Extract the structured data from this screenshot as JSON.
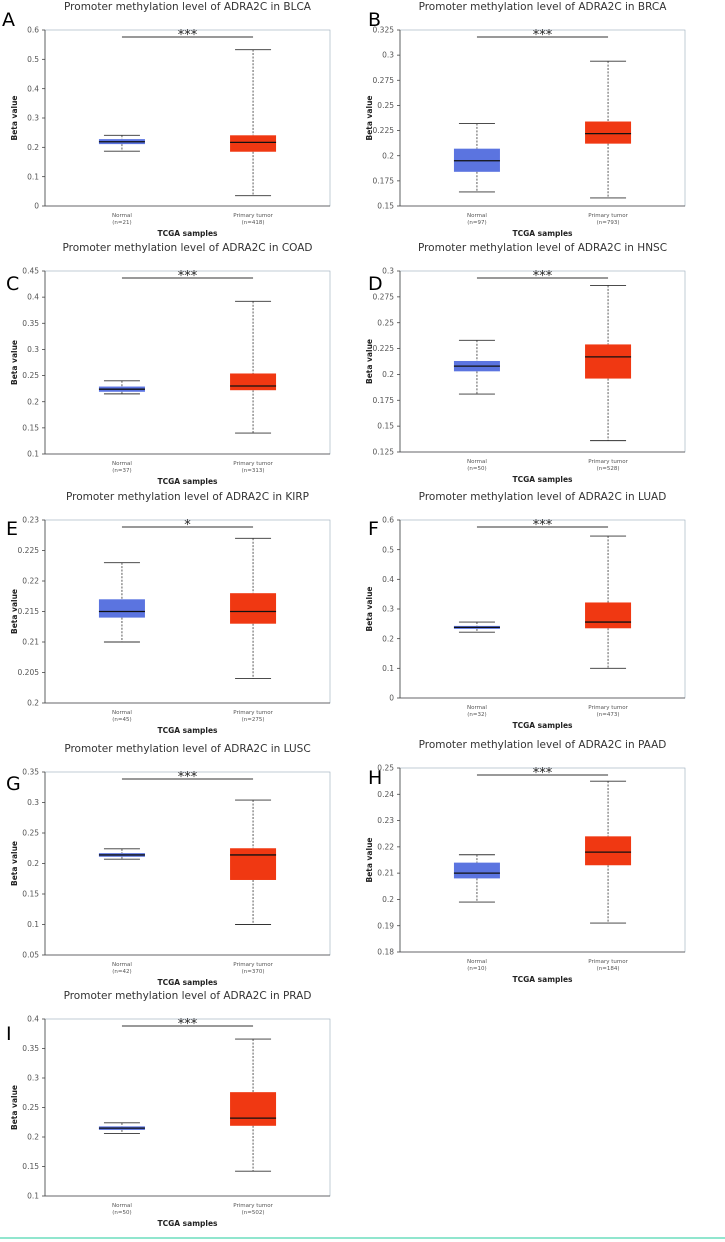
{
  "figure_rule_color": "#4fd6b0",
  "colors": {
    "normal": "#5b74e0",
    "tumor": "#f03812"
  },
  "chart_data": [
    {
      "type": "box",
      "letter": "A",
      "title": "Promoter methylation level of ADRA2C in BLCA",
      "ylabel": "Beta value",
      "xlabel": "TCGA samples",
      "ylim": [
        0,
        0.6
      ],
      "yticks": [
        "0",
        "0.1",
        "0.2",
        "0.3",
        "0.4",
        "0.5",
        "0.6"
      ],
      "significance": "***",
      "groups": [
        {
          "name": "Normal",
          "n": "(n=21)",
          "min": 0.187,
          "q1": 0.211,
          "median": 0.219,
          "q3": 0.228,
          "max": 0.241
        },
        {
          "name": "Primary tumor",
          "n": "(n=418)",
          "min": 0.035,
          "q1": 0.185,
          "median": 0.217,
          "q3": 0.241,
          "max": 0.533
        }
      ]
    },
    {
      "type": "box",
      "letter": "B",
      "title": "Promoter methylation level of ADRA2C in BRCA",
      "ylabel": "Beta value",
      "xlabel": "TCGA samples",
      "ylim": [
        0.15,
        0.325
      ],
      "yticks": [
        "0.15",
        "0.175",
        "0.2",
        "0.225",
        "0.25",
        "0.275",
        "0.3",
        "0.325"
      ],
      "significance": "***",
      "groups": [
        {
          "name": "Normal",
          "n": "(n=97)",
          "min": 0.164,
          "q1": 0.184,
          "median": 0.195,
          "q3": 0.207,
          "max": 0.232
        },
        {
          "name": "Primary tumor",
          "n": "(n=793)",
          "min": 0.158,
          "q1": 0.212,
          "median": 0.222,
          "q3": 0.234,
          "max": 0.294
        }
      ]
    },
    {
      "type": "box",
      "letter": "C",
      "title": "Promoter methylation level of ADRA2C in COAD",
      "ylabel": "Beta value",
      "xlabel": "TCGA samples",
      "ylim": [
        0.1,
        0.45
      ],
      "yticks": [
        "0.1",
        "0.15",
        "0.2",
        "0.25",
        "0.3",
        "0.35",
        "0.4",
        "0.45"
      ],
      "significance": "***",
      "groups": [
        {
          "name": "Normal",
          "n": "(n=37)",
          "min": 0.215,
          "q1": 0.219,
          "median": 0.224,
          "q3": 0.229,
          "max": 0.24
        },
        {
          "name": "Primary tumor",
          "n": "(n=313)",
          "min": 0.14,
          "q1": 0.222,
          "median": 0.23,
          "q3": 0.254,
          "max": 0.392
        }
      ]
    },
    {
      "type": "box",
      "letter": "D",
      "title": "Promoter methylation level of ADRA2C in HNSC",
      "ylabel": "Beta value",
      "xlabel": "TCGA samples",
      "ylim": [
        0.125,
        0.3
      ],
      "yticks": [
        "0.125",
        "0.15",
        "0.175",
        "0.2",
        "0.225",
        "0.25",
        "0.275",
        "0.3"
      ],
      "significance": "***",
      "groups": [
        {
          "name": "Normal",
          "n": "(n=50)",
          "min": 0.181,
          "q1": 0.203,
          "median": 0.208,
          "q3": 0.213,
          "max": 0.233
        },
        {
          "name": "Primary tumor",
          "n": "(n=528)",
          "min": 0.136,
          "q1": 0.196,
          "median": 0.217,
          "q3": 0.229,
          "max": 0.286
        }
      ]
    },
    {
      "type": "box",
      "letter": "E",
      "title": "Promoter methylation level of ADRA2C in KIRP",
      "ylabel": "Beta value",
      "xlabel": "TCGA samples",
      "ylim": [
        0.2,
        0.23
      ],
      "yticks": [
        "0.2",
        "0.205",
        "0.21",
        "0.215",
        "0.22",
        "0.225",
        "0.23"
      ],
      "significance": "*",
      "groups": [
        {
          "name": "Normal",
          "n": "(n=45)",
          "min": 0.21,
          "q1": 0.214,
          "median": 0.215,
          "q3": 0.217,
          "max": 0.223
        },
        {
          "name": "Primary tumor",
          "n": "(n=275)",
          "min": 0.204,
          "q1": 0.213,
          "median": 0.215,
          "q3": 0.218,
          "max": 0.227
        }
      ]
    },
    {
      "type": "box",
      "letter": "F",
      "title": "Promoter methylation level of ADRA2C in LUAD",
      "ylabel": "Beta value",
      "xlabel": "TCGA samples",
      "ylim": [
        0,
        0.6
      ],
      "yticks": [
        "0",
        "0.1",
        "0.2",
        "0.3",
        "0.4",
        "0.5",
        "0.6"
      ],
      "significance": "***",
      "groups": [
        {
          "name": "Normal",
          "n": "(n=32)",
          "min": 0.222,
          "q1": 0.233,
          "median": 0.238,
          "q3": 0.243,
          "max": 0.256
        },
        {
          "name": "Primary tumor",
          "n": "(n=473)",
          "min": 0.1,
          "q1": 0.235,
          "median": 0.256,
          "q3": 0.322,
          "max": 0.546
        }
      ]
    },
    {
      "type": "box",
      "letter": "G",
      "title": "Promoter methylation level of ADRA2C in LUSC",
      "ylabel": "Beta value",
      "xlabel": "TCGA samples",
      "ylim": [
        0.05,
        0.35
      ],
      "yticks": [
        "0.05",
        "0.1",
        "0.15",
        "0.2",
        "0.25",
        "0.3",
        "0.35"
      ],
      "significance": "***",
      "groups": [
        {
          "name": "Normal",
          "n": "(n=42)",
          "min": 0.207,
          "q1": 0.211,
          "median": 0.214,
          "q3": 0.217,
          "max": 0.224
        },
        {
          "name": "Primary tumor",
          "n": "(n=370)",
          "min": 0.1,
          "q1": 0.173,
          "median": 0.214,
          "q3": 0.225,
          "max": 0.304
        }
      ]
    },
    {
      "type": "box",
      "letter": "H",
      "title": "Promoter methylation level of ADRA2C in PAAD",
      "ylabel": "Beta value",
      "xlabel": "TCGA samples",
      "ylim": [
        0.18,
        0.25
      ],
      "yticks": [
        "0.18",
        "0.19",
        "0.2",
        "0.21",
        "0.22",
        "0.23",
        "0.24",
        "0.25"
      ],
      "significance": "***",
      "groups": [
        {
          "name": "Normal",
          "n": "(n=10)",
          "min": 0.199,
          "q1": 0.208,
          "median": 0.21,
          "q3": 0.214,
          "max": 0.217
        },
        {
          "name": "Primary tumor",
          "n": "(n=184)",
          "min": 0.191,
          "q1": 0.213,
          "median": 0.218,
          "q3": 0.224,
          "max": 0.245
        }
      ]
    },
    {
      "type": "box",
      "letter": "I",
      "title": "Promoter methylation level of ADRA2C in PRAD",
      "ylabel": "Beta value",
      "xlabel": "TCGA samples",
      "ylim": [
        0.1,
        0.4
      ],
      "yticks": [
        "0.1",
        "0.15",
        "0.2",
        "0.25",
        "0.3",
        "0.35",
        "0.4"
      ],
      "significance": "***",
      "groups": [
        {
          "name": "Normal",
          "n": "(n=50)",
          "min": 0.206,
          "q1": 0.212,
          "median": 0.215,
          "q3": 0.218,
          "max": 0.224
        },
        {
          "name": "Primary tumor",
          "n": "(n=502)",
          "min": 0.142,
          "q1": 0.219,
          "median": 0.232,
          "q3": 0.276,
          "max": 0.366
        }
      ]
    }
  ]
}
